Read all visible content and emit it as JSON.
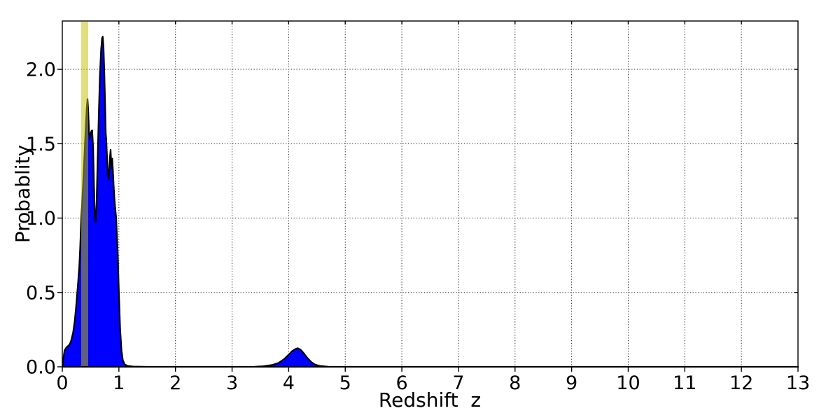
{
  "figure": {
    "background": "#ffffff",
    "frame_color": "#000000",
    "grid_style": "dotted"
  },
  "chart_data": {
    "type": "area",
    "title": "",
    "xlabel": "Redshift  z",
    "ylabel": "Probablity",
    "xlim": [
      0,
      13
    ],
    "ylim": [
      0,
      2.325
    ],
    "x_ticks": [
      0,
      1,
      2,
      3,
      4,
      5,
      6,
      7,
      8,
      9,
      10,
      11,
      12,
      13
    ],
    "x_tick_labels": [
      "0",
      "1",
      "2",
      "3",
      "4",
      "5",
      "6",
      "7",
      "8",
      "9",
      "10",
      "11",
      "12",
      "13"
    ],
    "y_ticks": [
      0.0,
      0.5,
      1.0,
      1.5,
      2.0
    ],
    "y_tick_labels": [
      "0.0",
      "0.5",
      "1.0",
      "1.5",
      "2.0"
    ],
    "grid": "on",
    "legend": "none",
    "series": [
      {
        "name": "redshift-probability-pdf",
        "fill_color": "#0000ff",
        "edge_color": "#000000",
        "edge_width": 2.2,
        "points": [
          [
            0.005,
            0.0
          ],
          [
            0.02,
            0.06
          ],
          [
            0.04,
            0.11
          ],
          [
            0.07,
            0.13
          ],
          [
            0.1,
            0.14
          ],
          [
            0.13,
            0.15
          ],
          [
            0.16,
            0.18
          ],
          [
            0.19,
            0.23
          ],
          [
            0.22,
            0.31
          ],
          [
            0.25,
            0.43
          ],
          [
            0.28,
            0.57
          ],
          [
            0.3,
            0.68
          ],
          [
            0.315,
            0.8
          ],
          [
            0.335,
            1.0
          ],
          [
            0.355,
            1.14
          ],
          [
            0.375,
            1.28
          ],
          [
            0.395,
            1.45
          ],
          [
            0.415,
            1.62
          ],
          [
            0.432,
            1.74
          ],
          [
            0.445,
            1.8
          ],
          [
            0.458,
            1.73
          ],
          [
            0.472,
            1.58
          ],
          [
            0.487,
            1.53
          ],
          [
            0.5,
            1.565
          ],
          [
            0.515,
            1.585
          ],
          [
            0.528,
            1.59
          ],
          [
            0.545,
            1.47
          ],
          [
            0.56,
            1.22
          ],
          [
            0.575,
            1.02
          ],
          [
            0.59,
            0.975
          ],
          [
            0.605,
            1.09
          ],
          [
            0.625,
            1.4
          ],
          [
            0.645,
            1.7
          ],
          [
            0.665,
            1.97
          ],
          [
            0.685,
            2.13
          ],
          [
            0.703,
            2.21
          ],
          [
            0.715,
            2.22
          ],
          [
            0.728,
            2.15
          ],
          [
            0.742,
            1.99
          ],
          [
            0.756,
            1.78
          ],
          [
            0.768,
            1.57
          ],
          [
            0.774,
            1.545
          ],
          [
            0.78,
            1.5
          ],
          [
            0.795,
            1.37
          ],
          [
            0.81,
            1.285
          ],
          [
            0.822,
            1.26
          ],
          [
            0.84,
            1.4
          ],
          [
            0.854,
            1.46
          ],
          [
            0.864,
            1.37
          ],
          [
            0.872,
            1.335
          ],
          [
            0.882,
            1.4
          ],
          [
            0.893,
            1.33
          ],
          [
            0.91,
            1.2
          ],
          [
            0.928,
            1.1
          ],
          [
            0.952,
            1.0
          ],
          [
            0.98,
            0.76
          ],
          [
            1.0,
            0.51
          ],
          [
            1.022,
            0.26
          ],
          [
            1.046,
            0.11
          ],
          [
            1.07,
            0.045
          ],
          [
            1.1,
            0.018
          ],
          [
            1.15,
            0.006
          ],
          [
            1.25,
            0.002
          ],
          [
            1.5,
            0.0
          ],
          [
            2.0,
            0.0
          ],
          [
            3.0,
            0.0
          ],
          [
            3.4,
            0.001
          ],
          [
            3.55,
            0.004
          ],
          [
            3.7,
            0.012
          ],
          [
            3.82,
            0.026
          ],
          [
            3.92,
            0.052
          ],
          [
            4.0,
            0.082
          ],
          [
            4.06,
            0.105
          ],
          [
            4.12,
            0.12
          ],
          [
            4.16,
            0.125
          ],
          [
            4.21,
            0.115
          ],
          [
            4.27,
            0.09
          ],
          [
            4.33,
            0.06
          ],
          [
            4.4,
            0.032
          ],
          [
            4.47,
            0.014
          ],
          [
            4.56,
            0.005
          ],
          [
            4.7,
            0.001
          ],
          [
            4.9,
            0.0
          ],
          [
            13.0,
            0.0
          ]
        ]
      }
    ],
    "marker_band": {
      "name": "reference-redshift-band",
      "z_min": 0.334,
      "z_max": 0.458,
      "color": "#bfbf00",
      "alpha": 0.5
    },
    "annotations": {
      "peak_1": {
        "z": 0.445,
        "p": 1.8
      },
      "peak_main": {
        "z": 0.715,
        "p": 2.22
      },
      "valley": {
        "z": 0.59,
        "p": 0.975
      },
      "secondary_bump_peak": {
        "z": 4.16,
        "p": 0.125
      }
    }
  }
}
